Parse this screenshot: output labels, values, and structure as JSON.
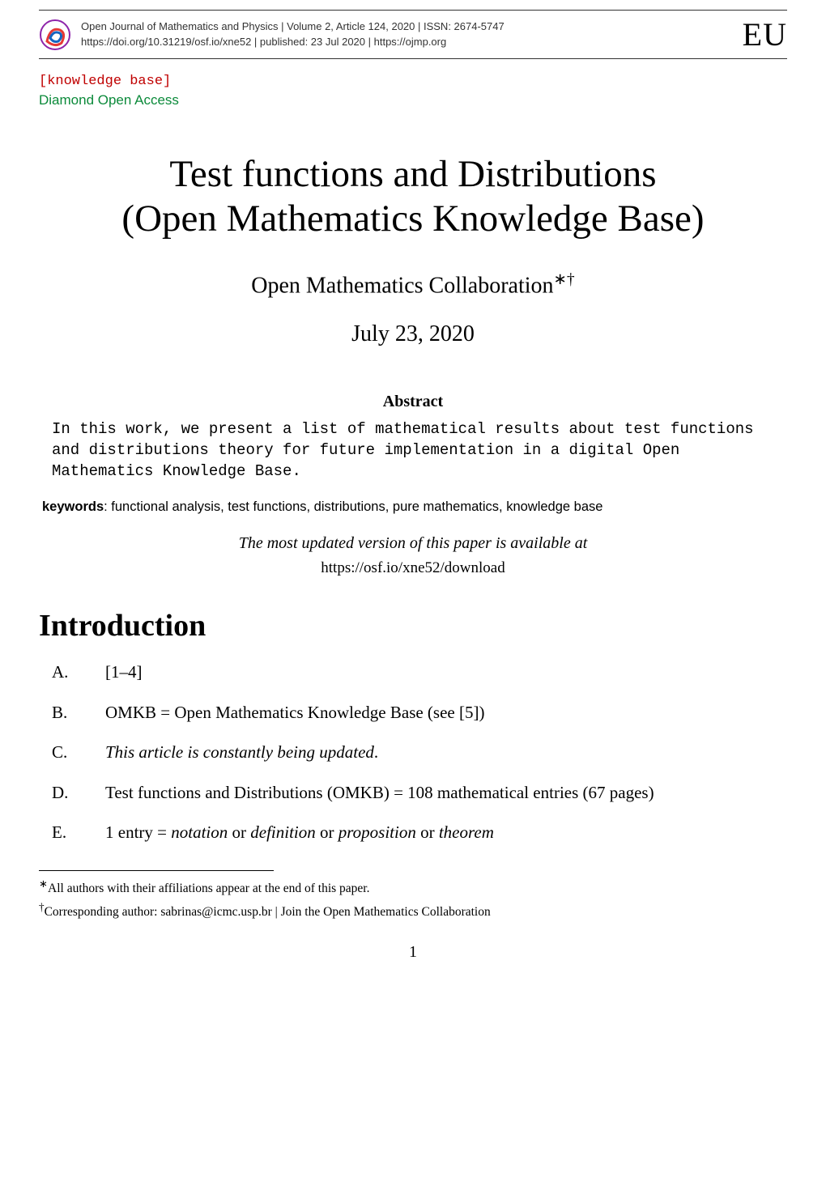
{
  "header": {
    "journal_line": "Open Journal of Mathematics and Physics | Volume 2, Article 124, 2020 | ISSN: 2674-5747",
    "doi_line": "https://doi.org/10.31219/osf.io/xne52 | published: 23 Jul 2020 | https://ojmp.org",
    "eu": "EU",
    "logo_colors": {
      "outer": "#e53935",
      "inner": "#1565c0",
      "border": "#8e24aa"
    }
  },
  "tags": {
    "knowledge": "[knowledge base]",
    "diamond": "Diamond Open Access"
  },
  "title_line1": "Test functions and Distributions",
  "title_line2": "(Open Mathematics Knowledge Base)",
  "author": "Open Mathematics Collaboration",
  "author_marks": "∗†",
  "date": "July 23, 2020",
  "abstract_head": "Abstract",
  "abstract_body": "In this work, we present a list of mathematical results about test functions and distributions theory for future implementation in a digital Open Mathematics Knowledge Base.",
  "keywords_label": "keywords",
  "keywords_text": ": functional analysis, test functions, distributions, pure mathematics, knowledge base",
  "updated_text": "The most updated version of this paper is available at",
  "updated_link": "https://osf.io/xne52/download",
  "section_intro": "Introduction",
  "intro": [
    {
      "marker": "A.",
      "html": "[1–4]"
    },
    {
      "marker": "B.",
      "html": "OMKB = Open Mathematics Knowledge Base (see [5])"
    },
    {
      "marker": "C.",
      "html": "<span class=\"italic\">This article is constantly being updated</span>."
    },
    {
      "marker": "D.",
      "html": "Test functions and Distributions (OMKB) = 108 mathematical entries (67 pages)"
    },
    {
      "marker": "E.",
      "html": "1 entry = <span class=\"italic\">notation</span> or <span class=\"italic\">definition</span> or <span class=\"italic\">proposition</span> or <span class=\"italic\">theorem</span>"
    }
  ],
  "footnotes": {
    "f1_mark": "∗",
    "f1_text": "All authors with their affiliations appear at the end of this paper.",
    "f2_mark": "†",
    "f2_text": "Corresponding author: sabrinas@icmc.usp.br | Join the Open Mathematics Collaboration"
  },
  "page_number": "1"
}
